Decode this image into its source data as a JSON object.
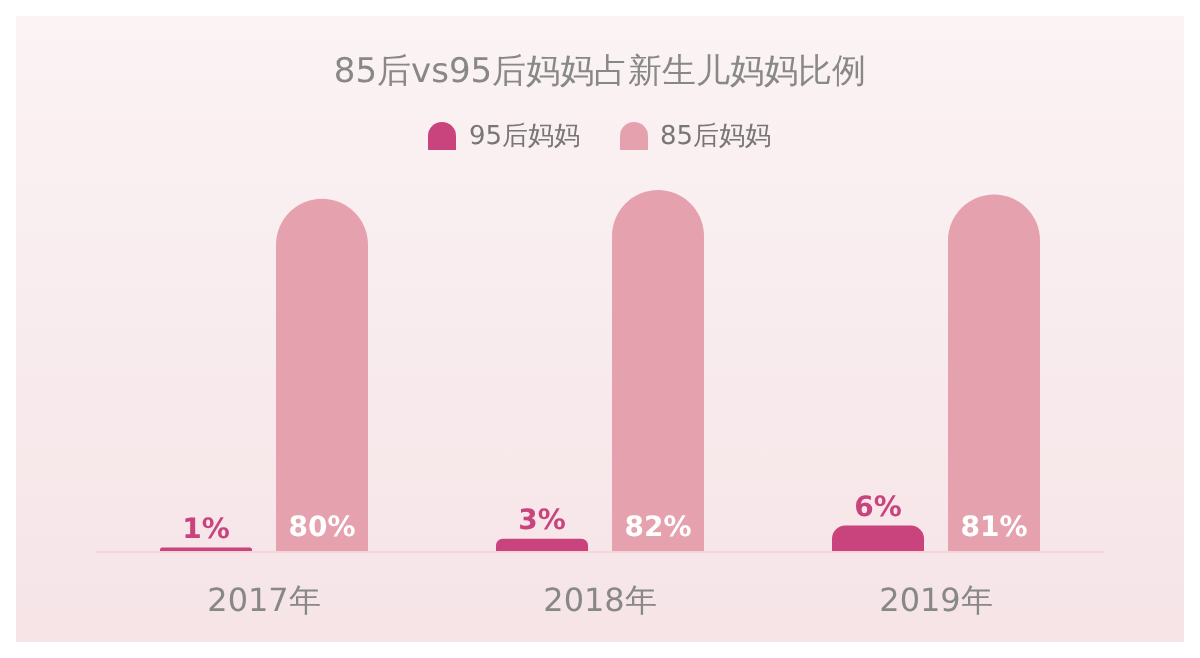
{
  "chart_data": {
    "type": "bar",
    "title": "85后vs95后妈妈占新生儿妈妈比例",
    "categories": [
      "2017年",
      "2018年",
      "2019年"
    ],
    "series": [
      {
        "name": "95后妈妈",
        "color": "#c9437c",
        "values": [
          1,
          3,
          6
        ],
        "value_labels": [
          "1%",
          "3%",
          "6%"
        ]
      },
      {
        "name": "85后妈妈",
        "color": "#e5a2ae",
        "values": [
          80,
          82,
          81
        ],
        "value_labels": [
          "80%",
          "82%",
          "81%"
        ]
      }
    ],
    "legend": "top",
    "grid": false
  }
}
